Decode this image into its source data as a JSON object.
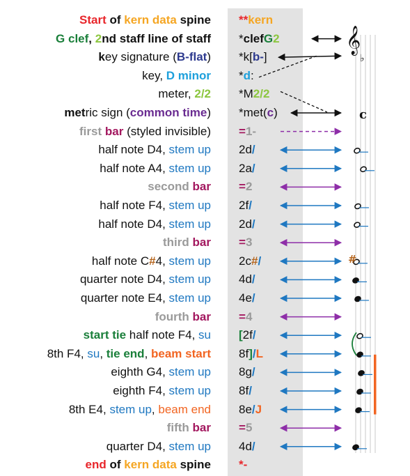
{
  "rows": [
    {
      "desc": [
        {
          "t": "Start",
          "c": "red"
        },
        {
          "t": " of ",
          "c": "bk"
        },
        {
          "t": "kern data",
          "c": "orange"
        },
        {
          "t": " spine",
          "c": "bk"
        }
      ],
      "kern": [
        {
          "t": "**",
          "c": "red"
        },
        {
          "t": "kern",
          "c": "orange"
        }
      ],
      "arrow": "none"
    },
    {
      "desc": [
        {
          "t": "G clef",
          "c": "green"
        },
        {
          "t": ", ",
          "c": "bk"
        },
        {
          "t": "2",
          "c": "lime"
        },
        {
          "t": "nd staff line of staff",
          "c": "bk"
        }
      ],
      "kern": [
        {
          "t": "*",
          "c": ""
        },
        {
          "t": "clef",
          "c": "bk"
        },
        {
          "t": "G",
          "c": "green"
        },
        {
          "t": "2",
          "c": "lime"
        }
      ],
      "arrow": "black"
    },
    {
      "desc": [
        {
          "t": "k",
          "c": "bk"
        },
        {
          "t": "ey signature (",
          "c": ""
        },
        {
          "t": "B-flat",
          "c": "navy"
        },
        {
          "t": ")",
          "c": ""
        }
      ],
      "kern": [
        {
          "t": "*",
          "c": ""
        },
        {
          "t": "k[",
          "c": ""
        },
        {
          "t": "b-",
          "c": "navy"
        },
        {
          "t": "]",
          "c": ""
        }
      ],
      "arrow": "black"
    },
    {
      "desc": [
        {
          "t": "key, ",
          "c": ""
        },
        {
          "t": "D minor",
          "c": "cyan"
        }
      ],
      "kern": [
        {
          "t": "*",
          "c": ""
        },
        {
          "t": "d",
          "c": "cyan"
        },
        {
          "t": ":",
          "c": ""
        }
      ],
      "arrow": "none"
    },
    {
      "desc": [
        {
          "t": "meter, ",
          "c": ""
        },
        {
          "t": "2/2",
          "c": "lime"
        }
      ],
      "kern": [
        {
          "t": "*",
          "c": ""
        },
        {
          "t": "M",
          "c": ""
        },
        {
          "t": "2/2",
          "c": "lime"
        }
      ],
      "arrow": "none"
    },
    {
      "desc": [
        {
          "t": "met",
          "c": "bk"
        },
        {
          "t": "ric sign (",
          "c": ""
        },
        {
          "t": "common time",
          "c": "purple"
        },
        {
          "t": ")",
          "c": ""
        }
      ],
      "kern": [
        {
          "t": "*",
          "c": ""
        },
        {
          "t": "met(",
          "c": ""
        },
        {
          "t": "c",
          "c": "purple"
        },
        {
          "t": ")",
          "c": ""
        }
      ],
      "arrow": "black"
    },
    {
      "desc": [
        {
          "t": "first",
          "c": "gray"
        },
        {
          "t": " ",
          "c": ""
        },
        {
          "t": "bar",
          "c": "magenta"
        },
        {
          "t": " (styled invisible)",
          "c": ""
        }
      ],
      "kern": [
        {
          "t": "=",
          "c": "magenta"
        },
        {
          "t": "1-",
          "c": "gray"
        }
      ],
      "arrow": "purple-dashed"
    },
    {
      "desc": [
        {
          "t": "half note D4, ",
          "c": ""
        },
        {
          "t": "stem up",
          "c": "blue"
        }
      ],
      "kern": [
        {
          "t": "2d",
          "c": ""
        },
        {
          "t": "/",
          "c": "blueb"
        }
      ],
      "arrow": "blue"
    },
    {
      "desc": [
        {
          "t": "half note A4, ",
          "c": ""
        },
        {
          "t": "stem up",
          "c": "blue"
        }
      ],
      "kern": [
        {
          "t": "2a",
          "c": ""
        },
        {
          "t": "/",
          "c": "blueb"
        }
      ],
      "arrow": "blue"
    },
    {
      "desc": [
        {
          "t": "second",
          "c": "gray"
        },
        {
          "t": " ",
          "c": ""
        },
        {
          "t": "bar",
          "c": "magenta"
        }
      ],
      "kern": [
        {
          "t": "=",
          "c": "magenta"
        },
        {
          "t": "2",
          "c": "gray"
        }
      ],
      "arrow": "purple"
    },
    {
      "desc": [
        {
          "t": "half note F4, ",
          "c": ""
        },
        {
          "t": "stem up",
          "c": "blue"
        }
      ],
      "kern": [
        {
          "t": "2f",
          "c": ""
        },
        {
          "t": "/",
          "c": "blueb"
        }
      ],
      "arrow": "blue"
    },
    {
      "desc": [
        {
          "t": "half note D4, ",
          "c": ""
        },
        {
          "t": "stem up",
          "c": "blue"
        }
      ],
      "kern": [
        {
          "t": "2d",
          "c": ""
        },
        {
          "t": "/",
          "c": "blueb"
        }
      ],
      "arrow": "blue"
    },
    {
      "desc": [
        {
          "t": "third",
          "c": "gray"
        },
        {
          "t": " ",
          "c": ""
        },
        {
          "t": "bar",
          "c": "magenta"
        }
      ],
      "kern": [
        {
          "t": "=",
          "c": "magenta"
        },
        {
          "t": "3",
          "c": "gray"
        }
      ],
      "arrow": "purple"
    },
    {
      "desc": [
        {
          "t": "half note C",
          "c": ""
        },
        {
          "t": "#",
          "c": "brown"
        },
        {
          "t": "4, ",
          "c": ""
        },
        {
          "t": "stem up",
          "c": "blue"
        }
      ],
      "kern": [
        {
          "t": "2c",
          "c": ""
        },
        {
          "t": "#",
          "c": "brown"
        },
        {
          "t": "/",
          "c": "blueb"
        }
      ],
      "arrow": "blue"
    },
    {
      "desc": [
        {
          "t": "quarter note D4, ",
          "c": ""
        },
        {
          "t": "stem up",
          "c": "blue"
        }
      ],
      "kern": [
        {
          "t": "4d",
          "c": ""
        },
        {
          "t": "/",
          "c": "blueb"
        }
      ],
      "arrow": "blue"
    },
    {
      "desc": [
        {
          "t": "quarter note E4, ",
          "c": ""
        },
        {
          "t": "stem up",
          "c": "blue"
        }
      ],
      "kern": [
        {
          "t": "4e",
          "c": ""
        },
        {
          "t": "/",
          "c": "blueb"
        }
      ],
      "arrow": "blue"
    },
    {
      "desc": [
        {
          "t": "fourth",
          "c": "gray"
        },
        {
          "t": " ",
          "c": ""
        },
        {
          "t": "bar",
          "c": "magenta"
        }
      ],
      "kern": [
        {
          "t": "=",
          "c": "magenta"
        },
        {
          "t": "4",
          "c": "gray"
        }
      ],
      "arrow": "purple"
    },
    {
      "desc": [
        {
          "t": "start tie",
          "c": "green"
        },
        {
          "t": " half note F4, ",
          "c": ""
        },
        {
          "t": "su",
          "c": "blue"
        }
      ],
      "kern": [
        {
          "t": "[",
          "c": "green"
        },
        {
          "t": "2f",
          "c": ""
        },
        {
          "t": "/",
          "c": "blueb"
        }
      ],
      "arrow": "blue"
    },
    {
      "desc": [
        {
          "t": "8th F4, ",
          "c": ""
        },
        {
          "t": "su",
          "c": "blue"
        },
        {
          "t": ", ",
          "c": ""
        },
        {
          "t": "tie end",
          "c": "green"
        },
        {
          "t": ", ",
          "c": ""
        },
        {
          "t": "beam start",
          "c": "orng"
        }
      ],
      "kern": [
        {
          "t": "8f",
          "c": ""
        },
        {
          "t": "]",
          "c": "green"
        },
        {
          "t": "/",
          "c": "blueb"
        },
        {
          "t": "L",
          "c": "orng"
        }
      ],
      "arrow": "blue"
    },
    {
      "desc": [
        {
          "t": "eighth G4, ",
          "c": ""
        },
        {
          "t": "stem up",
          "c": "blue"
        }
      ],
      "kern": [
        {
          "t": "8g",
          "c": ""
        },
        {
          "t": "/",
          "c": "blueb"
        }
      ],
      "arrow": "blue"
    },
    {
      "desc": [
        {
          "t": "eighth F4, ",
          "c": ""
        },
        {
          "t": "stem up",
          "c": "blue"
        }
      ],
      "kern": [
        {
          "t": "8f",
          "c": ""
        },
        {
          "t": "/",
          "c": "blueb"
        }
      ],
      "arrow": "blue"
    },
    {
      "desc": [
        {
          "t": "8th E4, ",
          "c": ""
        },
        {
          "t": "stem up",
          "c": "blue"
        },
        {
          "t": ", ",
          "c": ""
        },
        {
          "t": "beam end",
          "c": "orn2"
        }
      ],
      "kern": [
        {
          "t": "8e",
          "c": ""
        },
        {
          "t": "/",
          "c": "blueb"
        },
        {
          "t": "J",
          "c": "orng"
        }
      ],
      "arrow": "blue"
    },
    {
      "desc": [
        {
          "t": "fifth",
          "c": "gray"
        },
        {
          "t": " ",
          "c": ""
        },
        {
          "t": "bar",
          "c": "magenta"
        }
      ],
      "kern": [
        {
          "t": "=",
          "c": "magenta"
        },
        {
          "t": "5",
          "c": "gray"
        }
      ],
      "arrow": "purple"
    },
    {
      "desc": [
        {
          "t": "quarter D4, ",
          "c": ""
        },
        {
          "t": "stem up",
          "c": "blue"
        }
      ],
      "kern": [
        {
          "t": "4d",
          "c": ""
        },
        {
          "t": "/",
          "c": "blueb"
        }
      ],
      "arrow": "blue"
    },
    {
      "desc": [
        {
          "t": "end",
          "c": "red"
        },
        {
          "t": " of ",
          "c": "bk"
        },
        {
          "t": "kern data",
          "c": "orange"
        },
        {
          "t": " spine",
          "c": "bk"
        }
      ],
      "kern": [
        {
          "t": "*-",
          "c": "red"
        }
      ],
      "arrow": "none"
    }
  ],
  "colors": {
    "blue": "#1f78c1",
    "purple": "#8e2ea8",
    "black": "#111111",
    "beam": "#f26522",
    "tie": "#1a7f3a"
  },
  "icons": {
    "clef": "treble-clef-icon",
    "time": "common-time-icon",
    "flat": "flat-icon",
    "sharp": "sharp-icon"
  }
}
